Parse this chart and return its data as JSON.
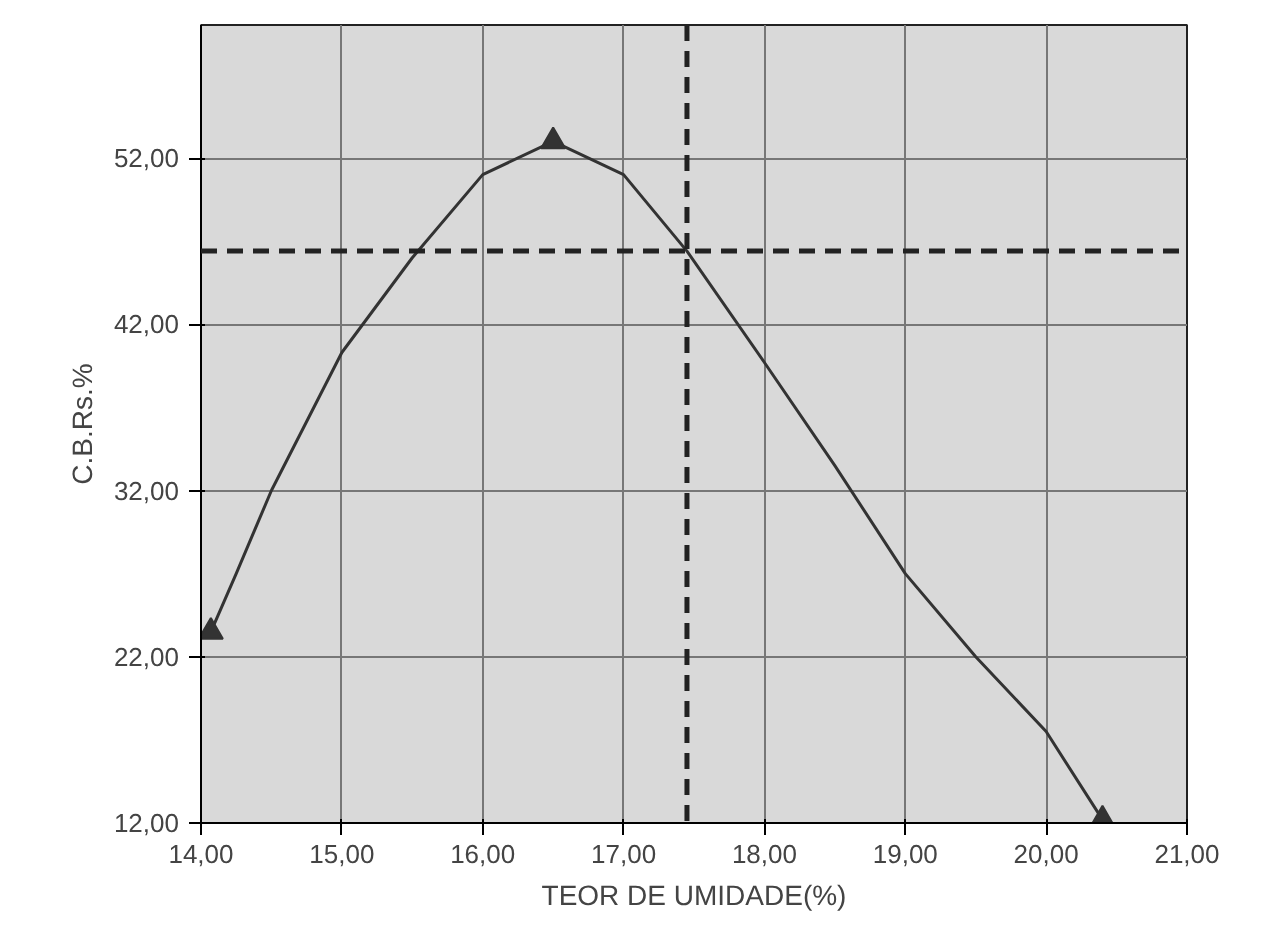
{
  "chart_data": {
    "type": "line",
    "xlabel": "TEOR DE UMIDADE(%)",
    "ylabel": "C.B.Rs.%",
    "xlim": [
      14,
      21
    ],
    "ylim": [
      12,
      60
    ],
    "xticks": [
      {
        "value": 14,
        "label": "14,00"
      },
      {
        "value": 15,
        "label": "15,00"
      },
      {
        "value": 16,
        "label": "16,00"
      },
      {
        "value": 17,
        "label": "17,00"
      },
      {
        "value": 18,
        "label": "18,00"
      },
      {
        "value": 19,
        "label": "19,00"
      },
      {
        "value": 20,
        "label": "20,00"
      },
      {
        "value": 21,
        "label": "21,00"
      }
    ],
    "yticks": [
      {
        "value": 12,
        "label": "12,00"
      },
      {
        "value": 22,
        "label": "22,00"
      },
      {
        "value": 32,
        "label": "32,00"
      },
      {
        "value": 42,
        "label": "42,00"
      },
      {
        "value": 52,
        "label": "52,00"
      }
    ],
    "grid": true,
    "series": [
      {
        "color": "#333333",
        "marker": "none",
        "line_style": "solid",
        "x": [
          14.07,
          14.25,
          14.5,
          15,
          15.5,
          16,
          16.5,
          17,
          17.45,
          18,
          18.5,
          19,
          19.5,
          20,
          20.4
        ],
        "values": [
          23.5,
          27,
          32,
          40.3,
          46,
          51,
          53,
          51,
          46.4,
          39.7,
          33.5,
          27,
          22,
          17.5,
          12.2
        ]
      },
      {
        "type": "scatter",
        "color": "#333333",
        "marker": "triangle",
        "x": [
          14.07,
          16.5,
          20.4
        ],
        "values": [
          23.5,
          53,
          12.2
        ]
      }
    ],
    "ref_lines": [
      {
        "axis": "y",
        "value": 46.4,
        "line_style": "dashed",
        "color": "#222222"
      },
      {
        "axis": "x",
        "value": 17.45,
        "line_style": "dashed",
        "color": "#222222"
      }
    ]
  }
}
